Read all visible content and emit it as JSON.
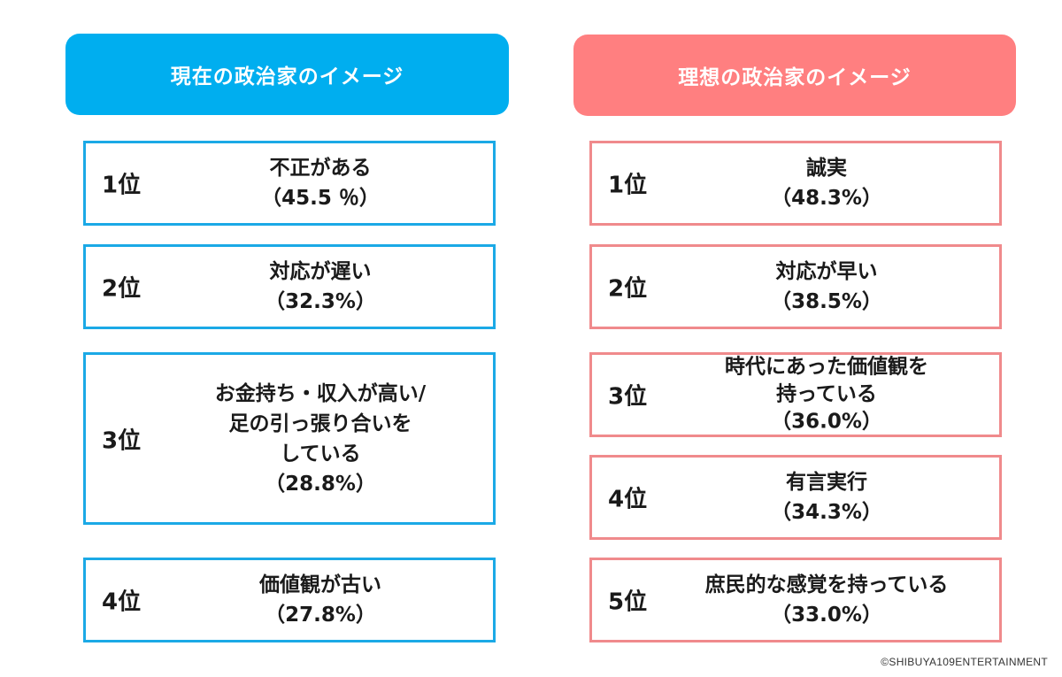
{
  "left": {
    "title": "現在の政治家のイメージ",
    "items": [
      {
        "rank": "1位",
        "lines": [
          "不正がある",
          "（45.5 ％）"
        ]
      },
      {
        "rank": "2位",
        "lines": [
          "対応が遅い",
          "（32.3%）"
        ]
      },
      {
        "rank": "3位",
        "lines": [
          "お金持ち・収入が高い/",
          "足の引っ張り合いを",
          "している",
          "（28.8%）"
        ]
      },
      {
        "rank": "4位",
        "lines": [
          "価値観が古い",
          "（27.8%）"
        ]
      }
    ]
  },
  "right": {
    "title": "理想の政治家のイメージ",
    "items": [
      {
        "rank": "1位",
        "lines": [
          "誠実",
          "（48.3%）"
        ]
      },
      {
        "rank": "2位",
        "lines": [
          "対応が早い",
          "（38.5%）"
        ]
      },
      {
        "rank": "3位",
        "lines": [
          "時代にあった価値観を",
          "持っている",
          "（36.0%）"
        ]
      },
      {
        "rank": "4位",
        "lines": [
          "有言実行",
          "（34.3%）"
        ]
      },
      {
        "rank": "5位",
        "lines": [
          "庶民的な感覚を持っている",
          "（33.0%）"
        ]
      }
    ]
  },
  "copyright": "©SHIBUYA109ENTERTAINMENT",
  "colors": {
    "left_accent": "#00aeef",
    "right_accent": "#ff7f80"
  }
}
